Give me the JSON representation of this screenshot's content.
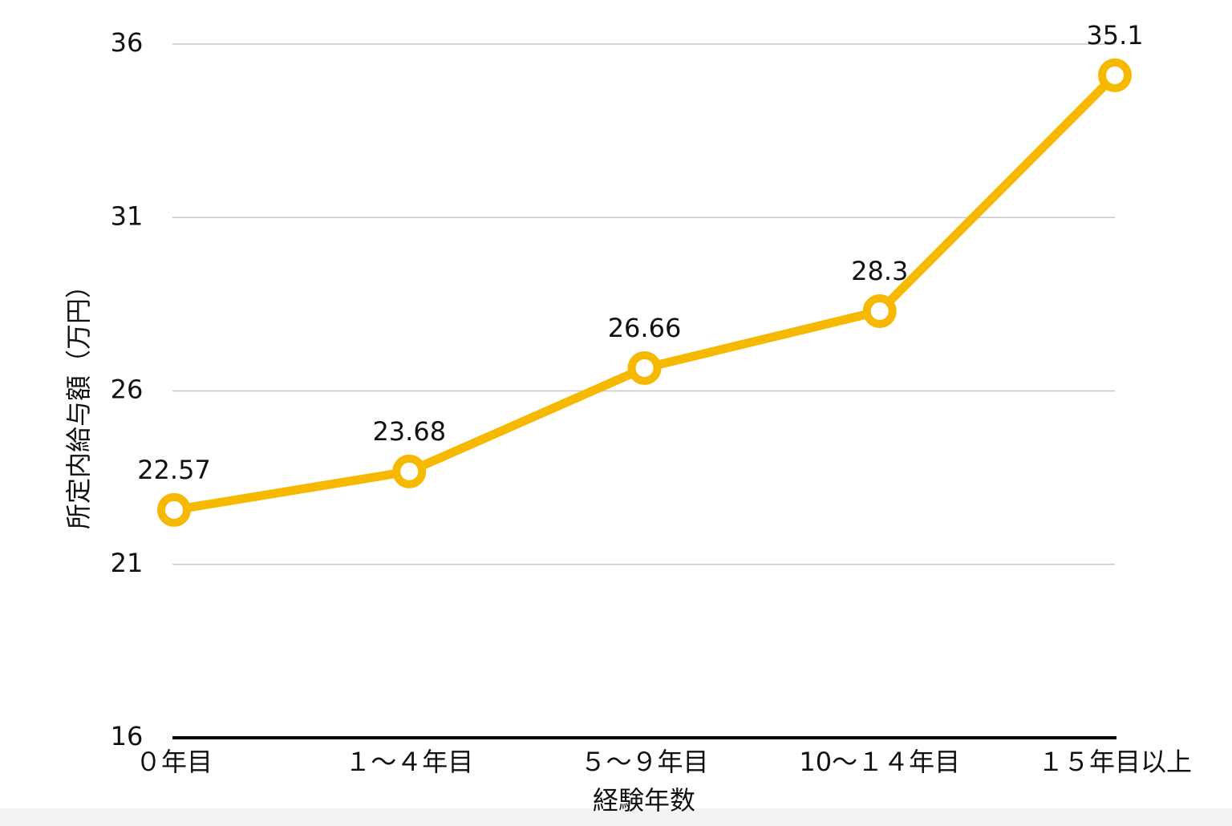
{
  "chart_data": {
    "type": "line",
    "x_label": "経験年数",
    "y_label": "所定内給与額（万円）",
    "categories": [
      "０年目",
      "１～４年目",
      "５～９年目",
      "10～１４年目",
      "１５年目以上"
    ],
    "values": [
      22.57,
      23.68,
      26.66,
      28.3,
      35.1
    ],
    "color": "#f6b900",
    "ylim": [
      16,
      36
    ],
    "yticks": [
      16,
      21,
      26,
      31,
      36
    ],
    "grid": true
  }
}
